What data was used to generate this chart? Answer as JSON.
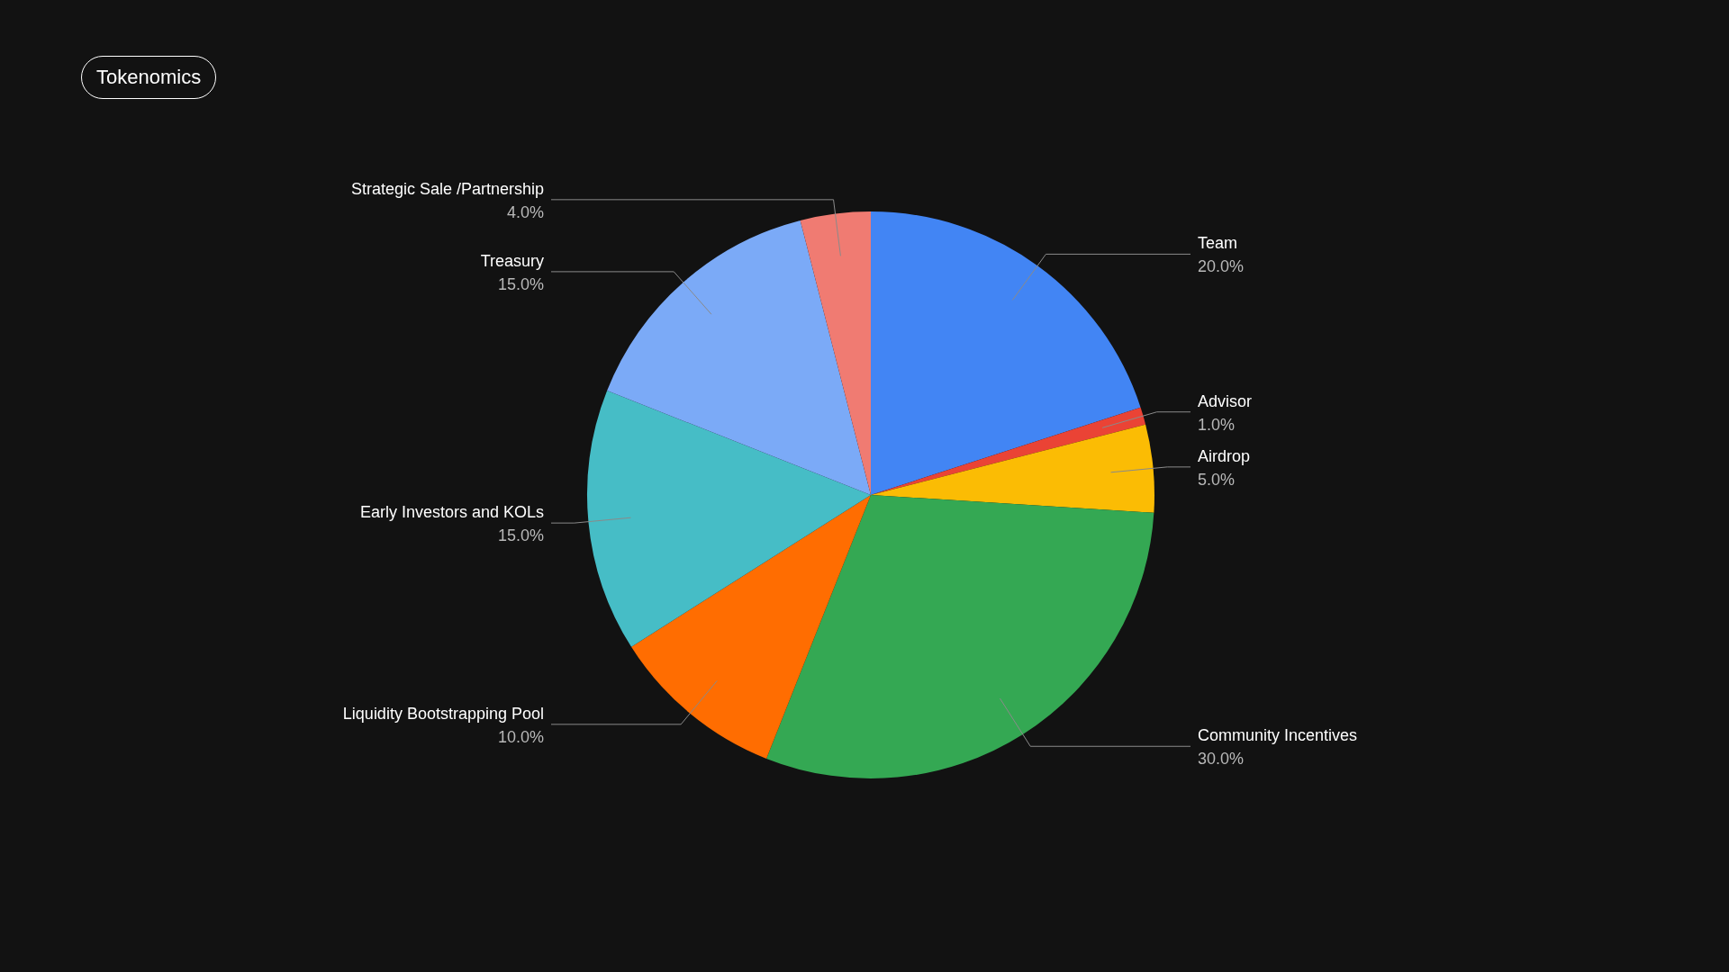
{
  "chart_data": {
    "type": "pie",
    "title": "Tokenomics",
    "categories": [
      "Team",
      "Advisor",
      "Airdrop",
      "Community Incentives",
      "Liquidity Bootstrapping Pool",
      "Early Investors and KOLs",
      "Treasury",
      "Strategic Sale /Partnership"
    ],
    "values": [
      20,
      1,
      5,
      30,
      10,
      15,
      15,
      4
    ],
    "value_labels": [
      "20.0%",
      "1.0%",
      "5.0%",
      "30.0%",
      "10.0%",
      "15.0%",
      "15.0%",
      "4.0%"
    ],
    "colors": [
      "#4285f4",
      "#ea4335",
      "#fbbc04",
      "#34a853",
      "#ff6d01",
      "#46bdc6",
      "#7baaf7",
      "#f07b72"
    ]
  }
}
